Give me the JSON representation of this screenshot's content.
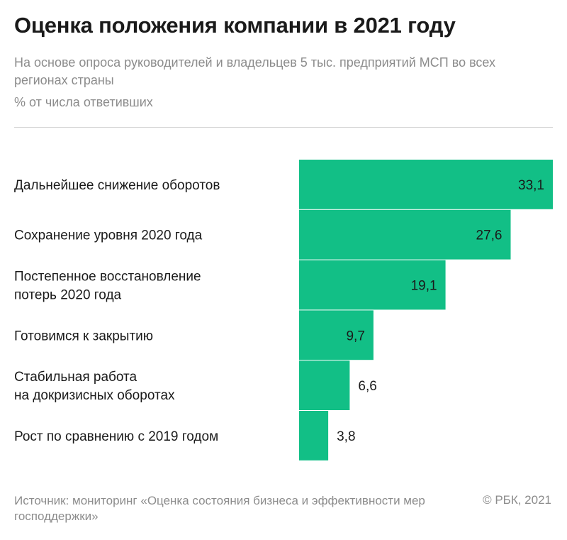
{
  "header": {
    "title": "Оценка положения компании в 2021 году",
    "subtitle": "На основе опроса руководителей и владельцев 5 тыс. предприятий МСП во всех регионах страны",
    "unit": "% от числа ответивших"
  },
  "footer": {
    "source": "Источник: мониторинг «Оценка состояния бизнеса и эффективности мер господдержки»",
    "copyright": "© РБК, 2021"
  },
  "colors": {
    "bar": "#12bf86"
  },
  "chart_data": {
    "type": "bar",
    "orientation": "horizontal",
    "title": "Оценка положения компании в 2021 году",
    "unit": "% от числа ответивших",
    "categories": [
      [
        "Дальнейшее снижение оборотов"
      ],
      [
        "Сохранение уровня 2020 года"
      ],
      [
        "Постепенное восстановление",
        "потерь 2020 года"
      ],
      [
        "Готовимся к закрытию"
      ],
      [
        "Стабильная работа",
        "на докризисных оборотах"
      ],
      [
        "Рост по сравнению с 2019 годом"
      ]
    ],
    "values": [
      33.1,
      27.6,
      19.1,
      9.7,
      6.6,
      3.8
    ],
    "value_labels": [
      "33,1",
      "27,6",
      "19,1",
      "9,7",
      "6,6",
      "3,8"
    ],
    "xlim": [
      0,
      33.1
    ]
  }
}
